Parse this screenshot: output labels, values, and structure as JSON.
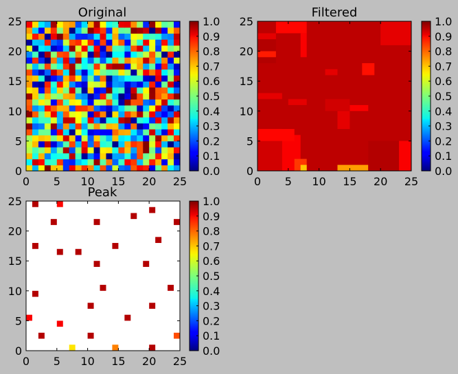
{
  "chart_data": [
    {
      "type": "heatmap",
      "title": "Original",
      "colormap": "jet",
      "grid_size": 25,
      "xlim": [
        0,
        25
      ],
      "ylim": [
        0,
        25
      ],
      "xticks": [
        "0",
        "5",
        "10",
        "15",
        "20",
        "25"
      ],
      "yticks": [
        "0",
        "5",
        "10",
        "15",
        "20",
        "25"
      ],
      "colorbar": {
        "range": [
          0.0,
          1.0
        ],
        "ticks": [
          "0.0",
          "0.1",
          "0.2",
          "0.3",
          "0.4",
          "0.5",
          "0.6",
          "0.7",
          "0.8",
          "0.9",
          "1.0"
        ]
      },
      "values_note": "25x25 grid of random values in [0, 1]"
    },
    {
      "type": "heatmap",
      "title": "Filtered",
      "colormap": "jet",
      "grid_size": 25,
      "xlim": [
        0,
        25
      ],
      "ylim": [
        0,
        25
      ],
      "xticks": [
        "0",
        "5",
        "10",
        "15",
        "20",
        "25"
      ],
      "yticks": [
        "0",
        "5",
        "10",
        "15",
        "20",
        "25"
      ],
      "colorbar": {
        "range": [
          0.0,
          1.0
        ],
        "ticks": [
          "0.0",
          "0.1",
          "0.2",
          "0.3",
          "0.4",
          "0.5",
          "0.6",
          "0.7",
          "0.8",
          "0.9",
          "1.0"
        ]
      },
      "background_value": 0.94,
      "blocks": [
        {
          "x": [
            0,
            4
          ],
          "y": [
            0,
            5
          ],
          "v": 0.92
        },
        {
          "x": [
            4,
            7
          ],
          "y": [
            0,
            6
          ],
          "v": 0.88
        },
        {
          "x": [
            6,
            8
          ],
          "y": [
            0,
            2
          ],
          "v": 0.82
        },
        {
          "x": [
            7,
            8
          ],
          "y": [
            0,
            1
          ],
          "v": 0.68
        },
        {
          "x": [
            13,
            18
          ],
          "y": [
            0,
            1
          ],
          "v": 0.72
        },
        {
          "x": [
            18,
            23
          ],
          "y": [
            0,
            5
          ],
          "v": 0.95
        },
        {
          "x": [
            23,
            25
          ],
          "y": [
            0,
            5
          ],
          "v": 0.88
        },
        {
          "x": [
            0,
            4
          ],
          "y": [
            6,
            7
          ],
          "v": 0.86
        },
        {
          "x": [
            0,
            6
          ],
          "y": [
            5,
            7
          ],
          "v": 0.87
        },
        {
          "x": [
            13,
            15
          ],
          "y": [
            7,
            10
          ],
          "v": 0.9
        },
        {
          "x": [
            15,
            18
          ],
          "y": [
            10,
            11
          ],
          "v": 0.88
        },
        {
          "x": [
            5,
            8
          ],
          "y": [
            11,
            12
          ],
          "v": 0.9
        },
        {
          "x": [
            11,
            15
          ],
          "y": [
            10,
            12
          ],
          "v": 0.92
        },
        {
          "x": [
            0,
            4
          ],
          "y": [
            12,
            13
          ],
          "v": 0.9
        },
        {
          "x": [
            0,
            3
          ],
          "y": [
            18,
            23
          ],
          "v": 0.95
        },
        {
          "x": [
            0,
            3
          ],
          "y": [
            19,
            20
          ],
          "v": 0.85
        },
        {
          "x": [
            0,
            3
          ],
          "y": [
            22,
            23
          ],
          "v": 0.9
        },
        {
          "x": [
            3,
            8
          ],
          "y": [
            23,
            25
          ],
          "v": 0.87
        },
        {
          "x": [
            7,
            8
          ],
          "y": [
            19,
            23
          ],
          "v": 0.88
        },
        {
          "x": [
            11,
            13
          ],
          "y": [
            16,
            17
          ],
          "v": 0.9
        },
        {
          "x": [
            17,
            19
          ],
          "y": [
            16,
            18
          ],
          "v": 0.86
        },
        {
          "x": [
            20,
            25
          ],
          "y": [
            21,
            25
          ],
          "v": 0.9
        }
      ]
    },
    {
      "type": "heatmap",
      "title": "Peak",
      "colormap": "jet",
      "grid_size": 25,
      "xlim": [
        0,
        25
      ],
      "ylim": [
        0,
        25
      ],
      "xticks": [
        "0",
        "5",
        "10",
        "15",
        "20",
        "25"
      ],
      "yticks": [
        "0",
        "5",
        "10",
        "15",
        "20",
        "25"
      ],
      "colorbar": {
        "range": [
          0.0,
          1.0
        ],
        "ticks": [
          "0.0",
          "0.1",
          "0.2",
          "0.3",
          "0.4",
          "0.5",
          "0.6",
          "0.7",
          "0.8",
          "0.9",
          "1.0"
        ]
      },
      "background": "masked (white)",
      "peaks": [
        {
          "x": 1,
          "y": 24,
          "v": 0.95
        },
        {
          "x": 5,
          "y": 24,
          "v": 0.87
        },
        {
          "x": 4,
          "y": 21,
          "v": 0.95
        },
        {
          "x": 11,
          "y": 21,
          "v": 0.95
        },
        {
          "x": 17,
          "y": 22,
          "v": 0.95
        },
        {
          "x": 20,
          "y": 23,
          "v": 0.95
        },
        {
          "x": 24,
          "y": 21,
          "v": 0.95
        },
        {
          "x": 21,
          "y": 18,
          "v": 0.95
        },
        {
          "x": 1,
          "y": 17,
          "v": 0.95
        },
        {
          "x": 5,
          "y": 16,
          "v": 0.95
        },
        {
          "x": 8,
          "y": 16,
          "v": 0.95
        },
        {
          "x": 14,
          "y": 17,
          "v": 0.95
        },
        {
          "x": 11,
          "y": 14,
          "v": 0.95
        },
        {
          "x": 19,
          "y": 14,
          "v": 0.95
        },
        {
          "x": 12,
          "y": 10,
          "v": 0.95
        },
        {
          "x": 23,
          "y": 10,
          "v": 0.95
        },
        {
          "x": 1,
          "y": 9,
          "v": 0.95
        },
        {
          "x": 10,
          "y": 7,
          "v": 0.95
        },
        {
          "x": 20,
          "y": 7,
          "v": 0.95
        },
        {
          "x": 0,
          "y": 5,
          "v": 0.88
        },
        {
          "x": 5,
          "y": 4,
          "v": 0.88
        },
        {
          "x": 16,
          "y": 5,
          "v": 0.95
        },
        {
          "x": 2,
          "y": 2,
          "v": 0.95
        },
        {
          "x": 10,
          "y": 2,
          "v": 0.95
        },
        {
          "x": 24,
          "y": 2,
          "v": 0.8
        },
        {
          "x": 7,
          "y": 0,
          "v": 0.65
        },
        {
          "x": 14,
          "y": 0,
          "v": 0.75
        },
        {
          "x": 20,
          "y": 0,
          "v": 0.95
        }
      ]
    }
  ]
}
